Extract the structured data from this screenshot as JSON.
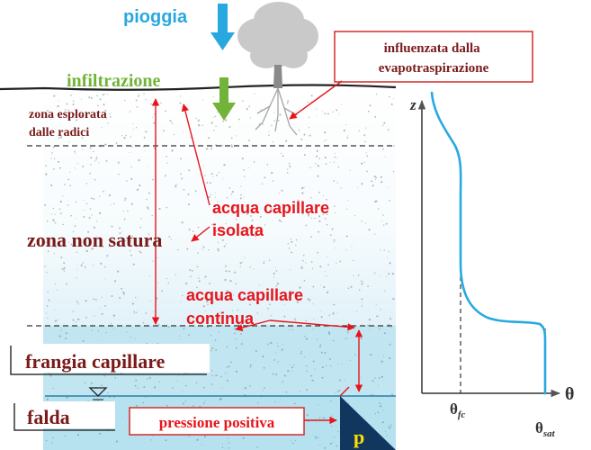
{
  "labels": {
    "rain": "pioggia",
    "infiltration": "infiltrazione",
    "evapo_influence": [
      "influenzata dalla",
      "evapotraspirazione"
    ],
    "root_zone": [
      "zona esplorata",
      "dalle radici"
    ],
    "isolated_capillary": [
      "acqua capillare",
      "isolata"
    ],
    "unsaturated_zone": "zona non satura",
    "continuous_capillary": [
      "acqua capillare",
      "continua"
    ],
    "capillary_fringe": "frangia capillare",
    "water_table": "falda",
    "positive_pressure": "pressione positiva",
    "pressure_symbol": "p"
  },
  "graph": {
    "y_axis_label": "z",
    "x_axis_label": "θ",
    "theta_fc": {
      "symbol": "θ",
      "subscript": "fc"
    },
    "theta_sat": {
      "symbol": "θ",
      "subscript": "sat"
    }
  },
  "colors": {
    "rain": "#29a8e0",
    "infiltration": "#72b43a",
    "annotation": "#e8141b",
    "box_border": "#d42a2a",
    "curve": "#27a9e1",
    "water_deep": "#b6e1ef",
    "triangle": "#12375e",
    "pressure_symbol": "#ffe000"
  }
}
